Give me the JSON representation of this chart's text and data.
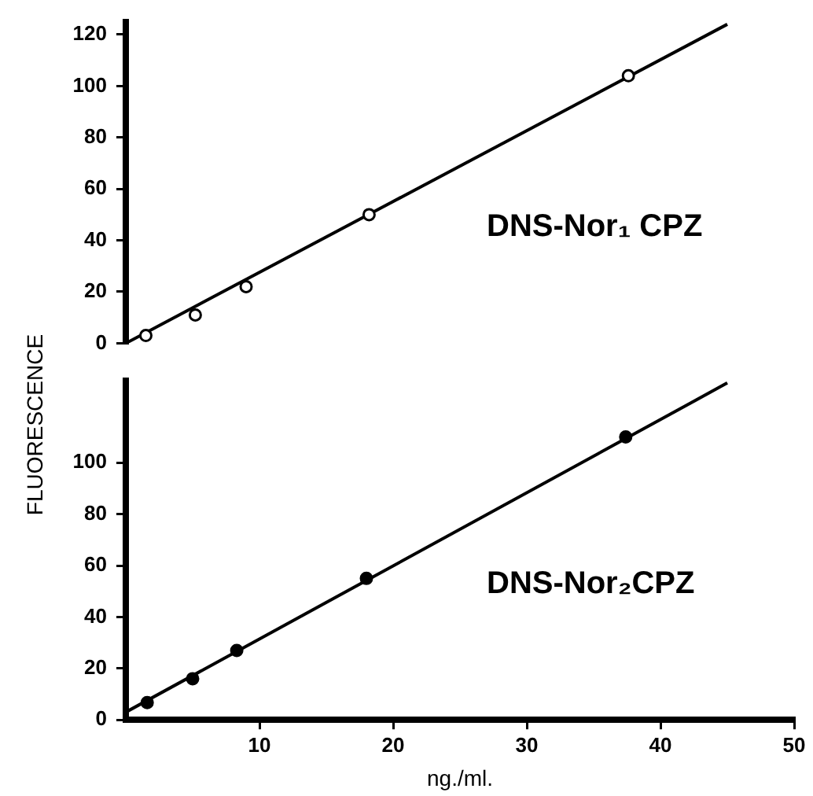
{
  "chart_data": [
    {
      "type": "scatter",
      "ylabel": "FLUORESCENCE",
      "xlim": [
        0,
        50
      ],
      "ylim": [
        0,
        125
      ],
      "yticks": [
        0,
        20,
        40,
        60,
        80,
        100,
        120
      ],
      "tick_labels": "y",
      "grid": false,
      "legend": false,
      "series": [
        {
          "color": "#000000",
          "marker": "circle",
          "x": [
            1.5,
            5.2,
            9,
            18.2,
            37.6
          ],
          "values": [
            3,
            11,
            22,
            50,
            104
          ]
        },
        {
          "type": "line",
          "color": "#000000",
          "marker": "none",
          "x": [
            0,
            45
          ],
          "values": [
            0,
            124
          ]
        }
      ],
      "annotations": [
        "DNS-Nor₁ CPZ"
      ]
    },
    {
      "type": "scatter",
      "xlabel": "ng./ml.",
      "xlim": [
        0,
        50
      ],
      "xticks": [
        10,
        20,
        30,
        40,
        50
      ],
      "ylim": [
        0,
        132
      ],
      "yticks": [
        0,
        20,
        40,
        60,
        80,
        100
      ],
      "grid": false,
      "legend": false,
      "series": [
        {
          "color": "#000000",
          "marker": "circle",
          "x": [
            1.6,
            5,
            8.3,
            18,
            37.4
          ],
          "values": [
            6.7,
            16,
            27,
            55,
            110
          ]
        },
        {
          "type": "line",
          "color": "#000000",
          "marker": "none",
          "x": [
            0,
            45
          ],
          "values": [
            3,
            131
          ]
        }
      ],
      "annotations": [
        "DNS-Nor₂CPZ"
      ]
    }
  ]
}
